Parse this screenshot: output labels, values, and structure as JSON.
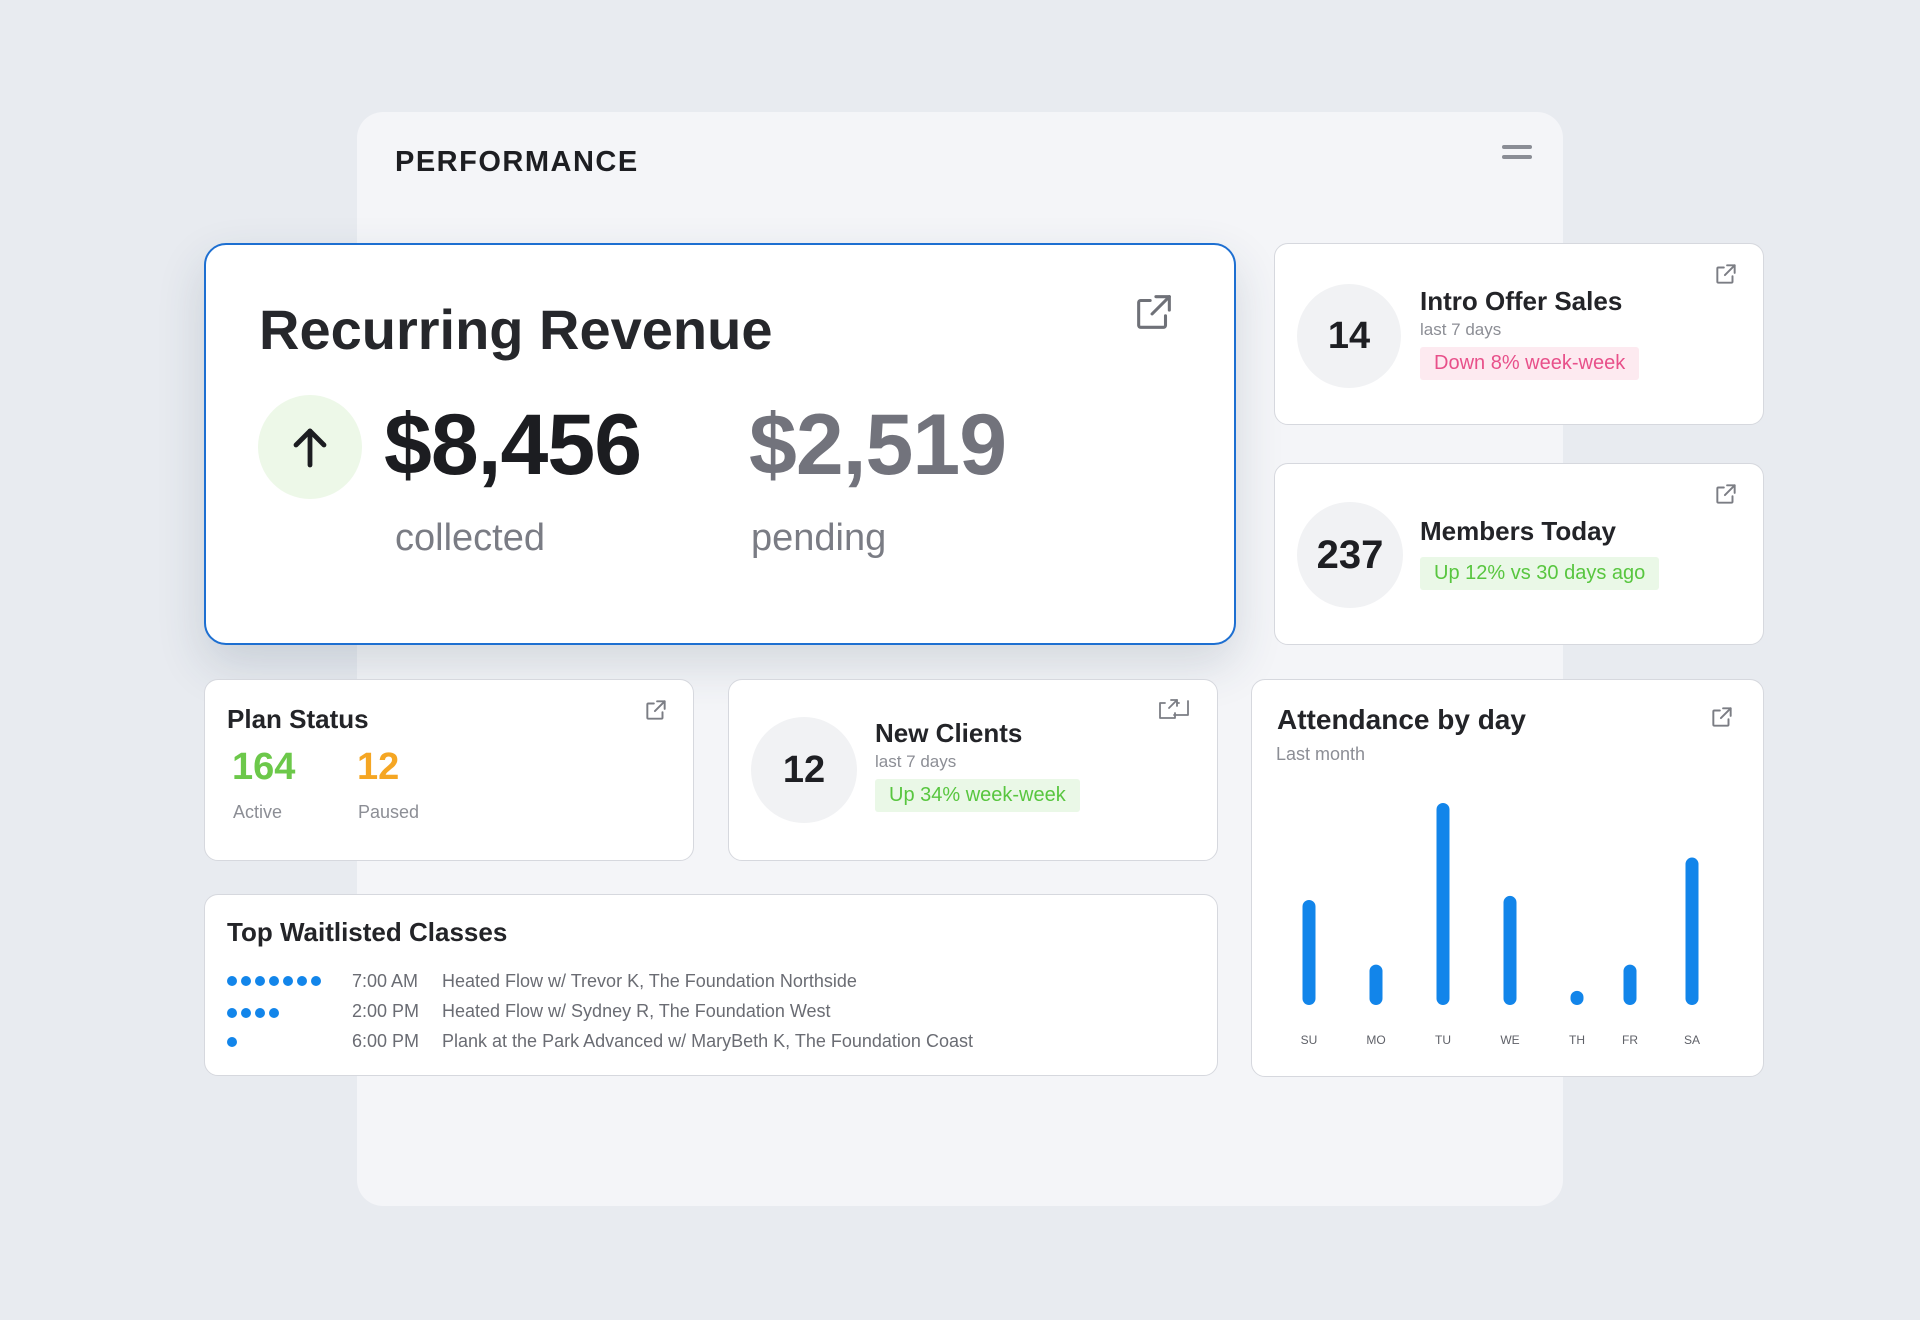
{
  "header": {
    "title": "PERFORMANCE",
    "menu_icon": "hamburger-icon"
  },
  "recurring_revenue": {
    "title": "Recurring Revenue",
    "trend_icon": "arrow-up-icon",
    "collected_value": "$8,456",
    "collected_label": "collected",
    "pending_value": "$2,519",
    "pending_label": "pending",
    "link_icon": "external-link-icon"
  },
  "intro_offer": {
    "count": "14",
    "title": "Intro Offer Sales",
    "period": "last 7 days",
    "badge": "Down 8% week-week",
    "link_icon": "external-link-icon"
  },
  "members_today": {
    "count": "237",
    "title": "Members Today",
    "badge": "Up 12% vs 30 days ago",
    "link_icon": "external-link-icon"
  },
  "plan_status": {
    "title": "Plan Status",
    "active_value": "164",
    "active_label": "Active",
    "paused_value": "12",
    "paused_label": "Paused",
    "link_icon": "external-link-icon"
  },
  "new_clients": {
    "count": "12",
    "title": "New Clients",
    "period": "last 7 days",
    "badge": "Up 34% week-week",
    "link_icon": "external-link-icon"
  },
  "waitlist": {
    "title": "Top Waitlisted Classes",
    "rows": [
      {
        "dot_count": 7,
        "time": "7:00 AM",
        "class": "Heated  Flow w/ Trevor K, The Foundation Northside"
      },
      {
        "dot_count": 4,
        "time": "2:00 PM",
        "class": "Heated  Flow w/ Sydney R, The Foundation West"
      },
      {
        "dot_count": 1,
        "time": "6:00 PM",
        "class": "Plank at the Park Advanced w/ MaryBeth  K, The Foundation Coast"
      }
    ]
  },
  "attendance": {
    "title": "Attendance by day",
    "subtitle": "Last month",
    "link_icon": "external-link-icon"
  },
  "colors": {
    "accent_blue": "#1285ea",
    "highlight_border": "#1d6fd1",
    "positive_green": "#58c63f",
    "negative_pink": "#e8508a",
    "paused_orange": "#f5a623"
  },
  "chart_data": {
    "type": "bar",
    "title": "Attendance by day",
    "subtitle": "Last month",
    "categories": [
      "SU",
      "MO",
      "TU",
      "WE",
      "TH",
      "FR",
      "SA"
    ],
    "values": [
      52,
      20,
      100,
      54,
      7,
      20,
      73
    ],
    "ylim": [
      0,
      100
    ],
    "grid": false,
    "legend": "none"
  }
}
